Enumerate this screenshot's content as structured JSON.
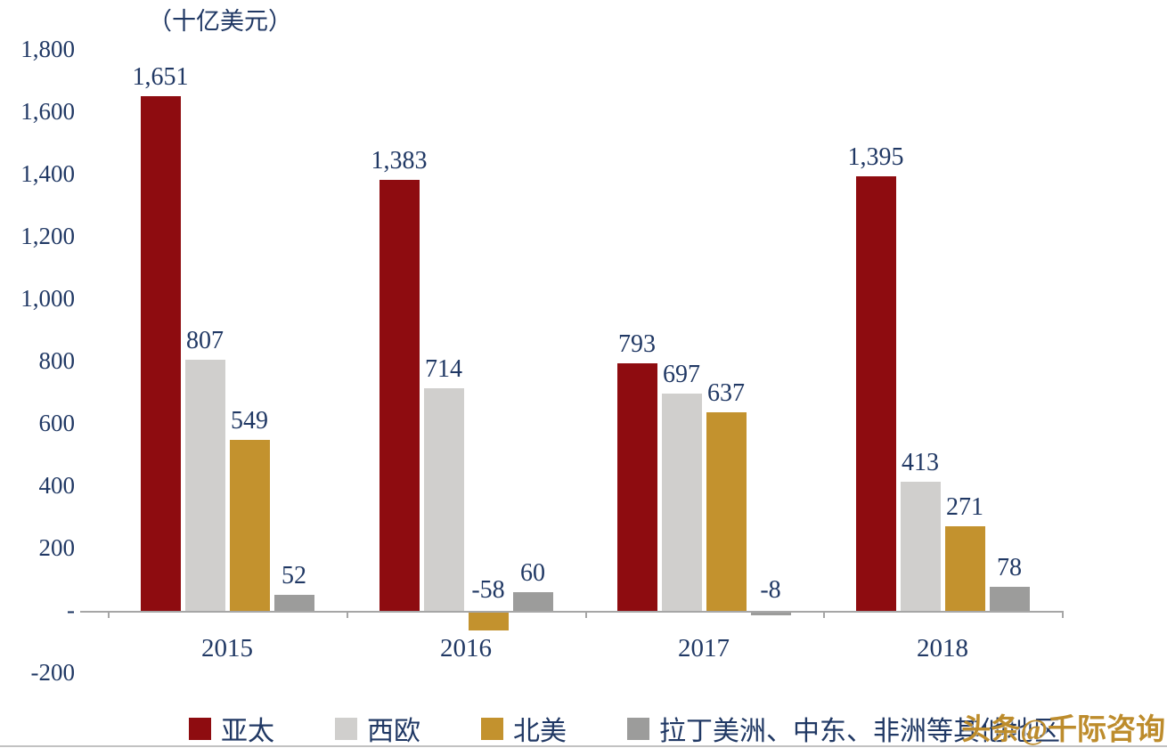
{
  "chart_data": {
    "type": "bar",
    "title": "",
    "unit_label": "（十亿美元）",
    "categories": [
      "2015",
      "2016",
      "2017",
      "2018"
    ],
    "series": [
      {
        "id": "asia-pacific",
        "name": "亚太",
        "color": "#8e0c10",
        "values": [
          1651,
          1383,
          793,
          1395
        ]
      },
      {
        "id": "western-europe",
        "name": "西欧",
        "color": "#d0cfcd",
        "values": [
          807,
          714,
          697,
          413
        ]
      },
      {
        "id": "north-america",
        "name": "北美",
        "color": "#c3922e",
        "values": [
          549,
          -58,
          637,
          271
        ]
      },
      {
        "id": "other-regions",
        "name": "拉丁美洲、中东、非洲等其他地区",
        "color": "#9c9c9b",
        "values": [
          52,
          60,
          -8,
          78
        ]
      }
    ],
    "y_axis": {
      "min": -200,
      "max": 1800,
      "step": 200,
      "tick_labels": [
        "1,800",
        "1,600",
        "1,400",
        "1,200",
        "1,000",
        "800",
        "600",
        "400",
        "200",
        "-",
        "-200"
      ]
    },
    "xlabel": "",
    "ylabel": "",
    "grid": false,
    "legend_position": "bottom",
    "colors": {
      "text": "#203864",
      "axis": "#a6a6a6",
      "watermark": "#bd8c2c"
    }
  },
  "watermark": "头条@千际咨询"
}
